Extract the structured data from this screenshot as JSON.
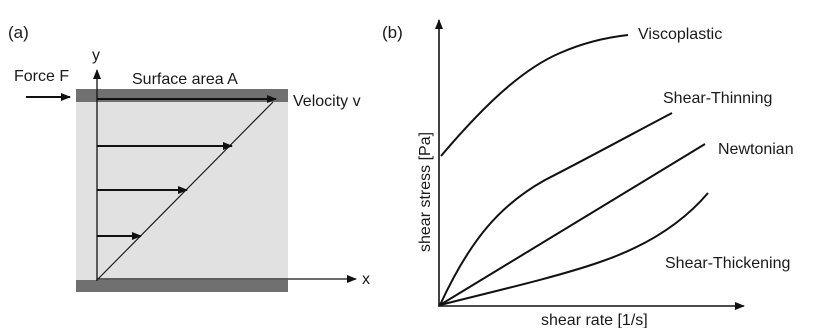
{
  "panel_a": {
    "label": "(a)",
    "force_label": "Force F",
    "area_label": "Surface area A",
    "velocity_label": "Velocity v",
    "y_axis_label": "y",
    "x_axis_label": "x",
    "colors": {
      "fluid": "#e1e1e1",
      "plate": "#707070",
      "ink": "#111111"
    }
  },
  "panel_b": {
    "label": "(b)",
    "xlabel": "shear rate [1/s]",
    "ylabel": "shear stress [Pa]",
    "curves": [
      {
        "name": "Viscoplastic"
      },
      {
        "name": "Shear-Thinning"
      },
      {
        "name": "Newtonian"
      },
      {
        "name": "Shear-Thickening"
      }
    ]
  }
}
